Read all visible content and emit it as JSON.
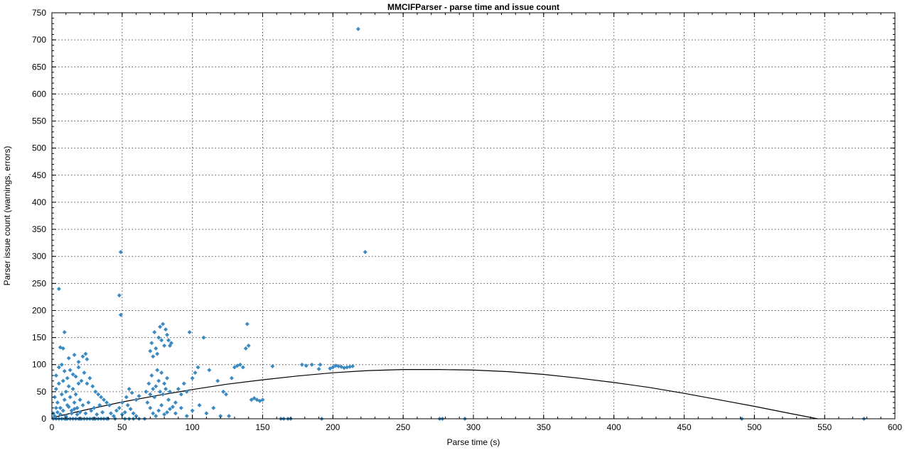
{
  "chart_data": {
    "type": "scatter",
    "title": "MMCIFParser - parse time and issue count",
    "xlabel": "Parse time (s)",
    "ylabel": "Parser issue count (warnings, errors)",
    "xlim": [
      0,
      600
    ],
    "ylim": [
      0,
      750
    ],
    "xticks": [
      0,
      50,
      100,
      150,
      200,
      250,
      300,
      350,
      400,
      450,
      500,
      550,
      600
    ],
    "yticks": [
      0,
      50,
      100,
      150,
      200,
      250,
      300,
      350,
      400,
      450,
      500,
      550,
      600,
      650,
      700,
      750
    ],
    "grid": true,
    "marker_color": "#3b8bc2",
    "fit_curve": {
      "x": [
        0,
        25,
        50,
        75,
        100,
        125,
        150,
        175,
        200,
        225,
        250,
        275,
        300,
        325,
        350,
        375,
        400,
        425,
        450,
        475,
        500,
        525,
        545
      ],
      "y": [
        2,
        17,
        31,
        43,
        54,
        64,
        72,
        79,
        85,
        89,
        91,
        91,
        90,
        87,
        82,
        75,
        67,
        58,
        47,
        35,
        23,
        10,
        0
      ]
    },
    "points": [
      [
        218,
        720
      ],
      [
        223,
        308
      ],
      [
        49,
        308
      ],
      [
        5,
        240
      ],
      [
        48,
        228
      ],
      [
        49,
        192
      ],
      [
        2,
        40
      ],
      [
        3,
        55
      ],
      [
        4,
        30
      ],
      [
        5,
        65
      ],
      [
        6,
        20
      ],
      [
        7,
        45
      ],
      [
        8,
        70
      ],
      [
        9,
        35
      ],
      [
        10,
        50
      ],
      [
        11,
        25
      ],
      [
        12,
        60
      ],
      [
        13,
        40
      ],
      [
        14,
        15
      ],
      [
        15,
        55
      ],
      [
        16,
        30
      ],
      [
        17,
        45
      ],
      [
        18,
        20
      ],
      [
        19,
        65
      ],
      [
        20,
        35
      ],
      [
        1,
        10
      ],
      [
        2,
        5
      ],
      [
        3,
        20
      ],
      [
        4,
        12
      ],
      [
        6,
        8
      ],
      [
        8,
        15
      ],
      [
        10,
        5
      ],
      [
        12,
        22
      ],
      [
        14,
        10
      ],
      [
        16,
        18
      ],
      [
        18,
        8
      ],
      [
        20,
        12
      ],
      [
        22,
        25
      ],
      [
        24,
        10
      ],
      [
        26,
        30
      ],
      [
        28,
        15
      ],
      [
        30,
        20
      ],
      [
        32,
        8
      ],
      [
        34,
        25
      ],
      [
        36,
        12
      ],
      [
        3,
        80
      ],
      [
        5,
        95
      ],
      [
        7,
        100
      ],
      [
        9,
        88
      ],
      [
        11,
        75
      ],
      [
        13,
        90
      ],
      [
        15,
        82
      ],
      [
        17,
        78
      ],
      [
        19,
        95
      ],
      [
        21,
        70
      ],
      [
        23,
        85
      ],
      [
        25,
        65
      ],
      [
        27,
        75
      ],
      [
        29,
        60
      ],
      [
        31,
        50
      ],
      [
        33,
        45
      ],
      [
        35,
        40
      ],
      [
        37,
        35
      ],
      [
        39,
        30
      ],
      [
        41,
        25
      ],
      [
        6,
        132
      ],
      [
        8,
        130
      ],
      [
        9,
        160
      ],
      [
        12,
        112
      ],
      [
        16,
        118
      ],
      [
        19,
        105
      ],
      [
        22,
        115
      ],
      [
        24,
        120
      ],
      [
        25,
        110
      ],
      [
        10,
        0
      ],
      [
        20,
        0
      ],
      [
        30,
        0
      ],
      [
        40,
        0
      ],
      [
        45,
        0
      ],
      [
        52,
        0
      ],
      [
        55,
        0
      ],
      [
        58,
        0
      ],
      [
        62,
        0
      ],
      [
        66,
        0
      ],
      [
        42,
        10
      ],
      [
        44,
        5
      ],
      [
        46,
        15
      ],
      [
        48,
        20
      ],
      [
        50,
        8
      ],
      [
        52,
        12
      ],
      [
        54,
        25
      ],
      [
        56,
        18
      ],
      [
        58,
        10
      ],
      [
        60,
        5
      ],
      [
        50,
        30
      ],
      [
        53,
        40
      ],
      [
        55,
        55
      ],
      [
        57,
        48
      ],
      [
        60,
        35
      ],
      [
        62,
        42
      ],
      [
        67,
        50
      ],
      [
        68,
        30
      ],
      [
        69,
        65
      ],
      [
        70,
        45
      ],
      [
        71,
        80
      ],
      [
        72,
        55
      ],
      [
        73,
        40
      ],
      [
        74,
        60
      ],
      [
        75,
        90
      ],
      [
        76,
        70
      ],
      [
        77,
        50
      ],
      [
        78,
        85
      ],
      [
        79,
        45
      ],
      [
        80,
        65
      ],
      [
        81,
        55
      ],
      [
        82,
        75
      ],
      [
        83,
        35
      ],
      [
        84,
        50
      ],
      [
        70,
        125
      ],
      [
        71,
        140
      ],
      [
        72,
        115
      ],
      [
        73,
        160
      ],
      [
        74,
        130
      ],
      [
        75,
        120
      ],
      [
        76,
        150
      ],
      [
        77,
        170
      ],
      [
        78,
        145
      ],
      [
        79,
        175
      ],
      [
        80,
        135
      ],
      [
        81,
        165
      ],
      [
        82,
        155
      ],
      [
        83,
        145
      ],
      [
        84,
        135
      ],
      [
        85,
        140
      ],
      [
        70,
        20
      ],
      [
        72,
        10
      ],
      [
        74,
        5
      ],
      [
        76,
        15
      ],
      [
        78,
        25
      ],
      [
        80,
        8
      ],
      [
        82,
        12
      ],
      [
        84,
        18
      ],
      [
        86,
        22
      ],
      [
        88,
        30
      ],
      [
        90,
        55
      ],
      [
        92,
        45
      ],
      [
        94,
        65
      ],
      [
        96,
        50
      ],
      [
        98,
        160
      ],
      [
        100,
        75
      ],
      [
        102,
        85
      ],
      [
        104,
        95
      ],
      [
        88,
        10
      ],
      [
        92,
        20
      ],
      [
        96,
        5
      ],
      [
        100,
        15
      ],
      [
        105,
        25
      ],
      [
        110,
        10
      ],
      [
        115,
        20
      ],
      [
        120,
        5
      ],
      [
        108,
        150
      ],
      [
        112,
        90
      ],
      [
        118,
        70
      ],
      [
        122,
        50
      ],
      [
        124,
        45
      ],
      [
        126,
        5
      ],
      [
        128,
        75
      ],
      [
        130,
        95
      ],
      [
        132,
        98
      ],
      [
        134,
        100
      ],
      [
        136,
        95
      ],
      [
        138,
        130
      ],
      [
        139,
        175
      ],
      [
        140,
        135
      ],
      [
        142,
        35
      ],
      [
        144,
        38
      ],
      [
        146,
        35
      ],
      [
        148,
        33
      ],
      [
        150,
        35
      ],
      [
        157,
        97
      ],
      [
        163,
        0
      ],
      [
        165,
        0
      ],
      [
        168,
        0
      ],
      [
        170,
        0
      ],
      [
        178,
        100
      ],
      [
        181,
        98
      ],
      [
        185,
        100
      ],
      [
        190,
        92
      ],
      [
        191,
        100
      ],
      [
        192,
        0
      ],
      [
        198,
        93
      ],
      [
        200,
        95
      ],
      [
        202,
        98
      ],
      [
        204,
        97
      ],
      [
        206,
        96
      ],
      [
        208,
        94
      ],
      [
        210,
        95
      ],
      [
        212,
        96
      ],
      [
        214,
        97
      ],
      [
        276,
        0
      ],
      [
        278,
        0
      ],
      [
        294,
        0
      ],
      [
        491,
        0
      ],
      [
        578,
        0
      ],
      [
        1,
        0
      ],
      [
        3,
        0
      ],
      [
        5,
        0
      ],
      [
        7,
        0
      ],
      [
        9,
        0
      ],
      [
        11,
        0
      ],
      [
        13,
        0
      ],
      [
        15,
        0
      ],
      [
        17,
        0
      ],
      [
        19,
        0
      ],
      [
        21,
        0
      ],
      [
        23,
        0
      ],
      [
        25,
        0
      ],
      [
        27,
        0
      ],
      [
        29,
        0
      ],
      [
        31,
        0
      ],
      [
        33,
        0
      ],
      [
        35,
        0
      ],
      [
        37,
        0
      ],
      [
        39,
        0
      ]
    ]
  }
}
